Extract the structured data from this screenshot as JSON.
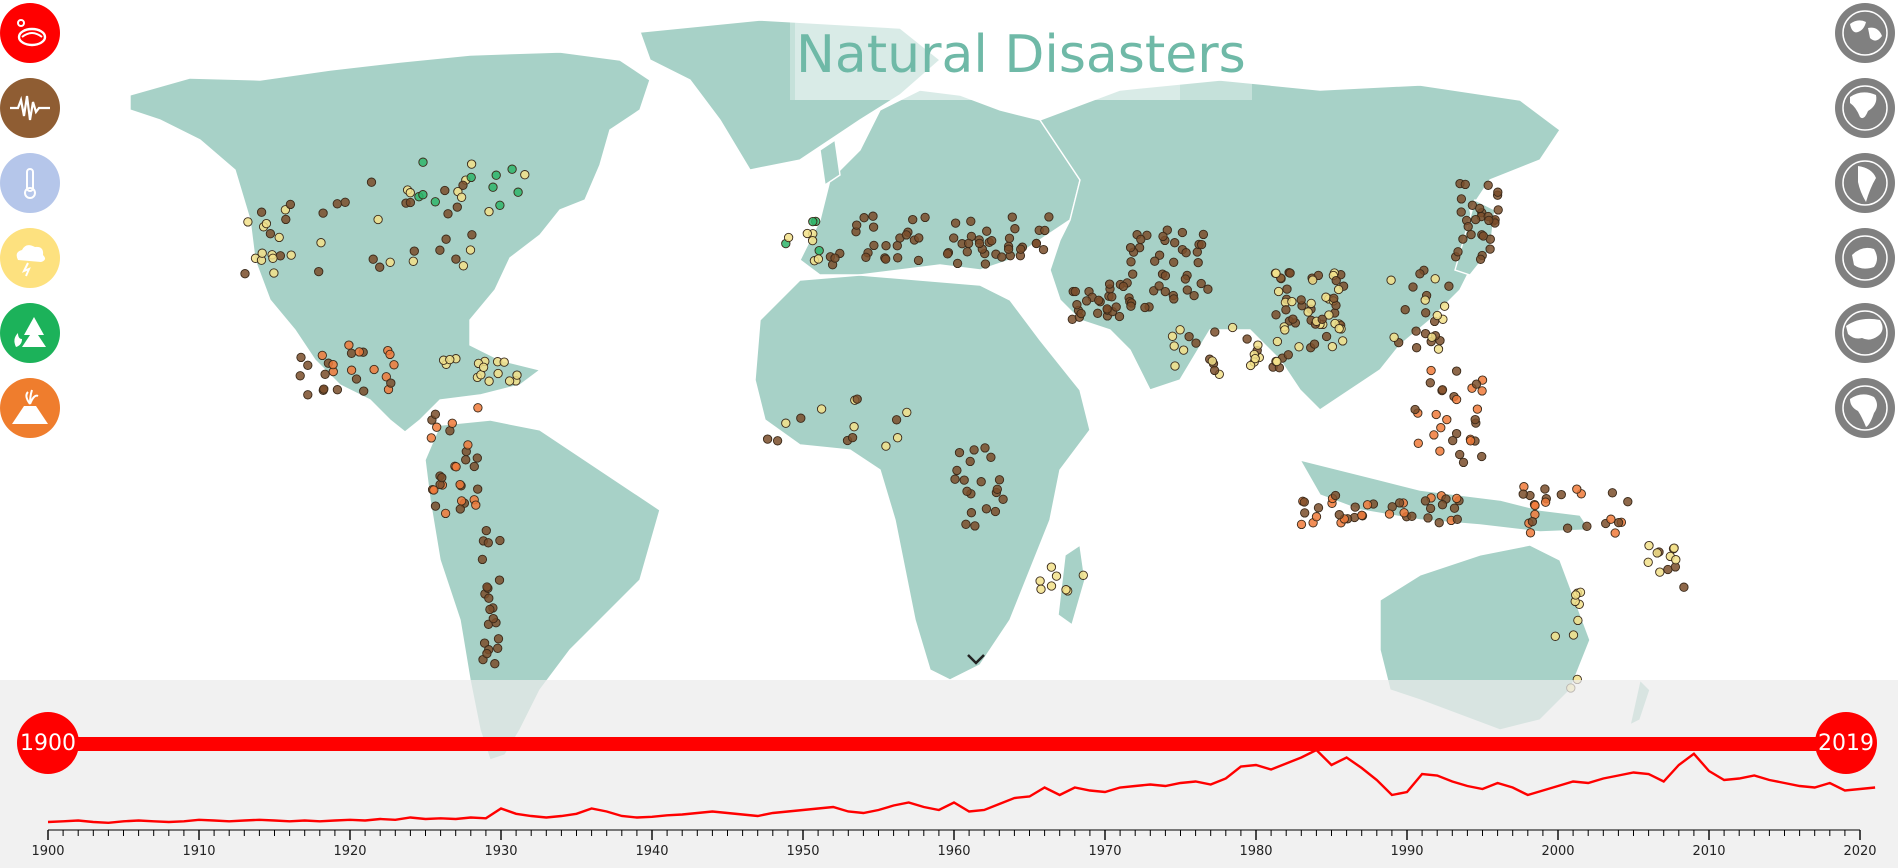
{
  "title": "Natural Disasters",
  "colors": {
    "land": "#a7d1c7",
    "accent": "#ff0000",
    "title": "#6fb9a7",
    "earthquake": "#7a4e2a",
    "storm": "#f2e08a",
    "wildfire": "#2fb56a",
    "volcano": "#f07a3a",
    "extreme_temp": "#c4cce8"
  },
  "left_toolbar": [
    {
      "icon": "all-disasters-icon",
      "color": "#ff0000"
    },
    {
      "icon": "earthquake-icon",
      "color": "#8f5d33"
    },
    {
      "icon": "thermometer-icon",
      "color": "#b5c6ea"
    },
    {
      "icon": "storm-cloud-icon",
      "color": "#fde17f"
    },
    {
      "icon": "wildfire-icon",
      "color": "#1cb25a"
    },
    {
      "icon": "volcano-icon",
      "color": "#ef7d2d"
    }
  ],
  "right_toolbar": [
    {
      "icon": "world-globe-icon"
    },
    {
      "icon": "north-america-globe-icon"
    },
    {
      "icon": "south-america-globe-icon"
    },
    {
      "icon": "australia-globe-icon"
    },
    {
      "icon": "asia-globe-icon"
    },
    {
      "icon": "africa-globe-icon"
    }
  ],
  "timeline": {
    "start_label": "1900",
    "end_label": "2019",
    "axis_ticks": [
      "1900",
      "1910",
      "1920",
      "1930",
      "1940",
      "1950",
      "1960",
      "1970",
      "1980",
      "1990",
      "2000",
      "2010",
      "2020"
    ],
    "range": [
      1900,
      2020
    ],
    "counts": [
      0.04,
      0.05,
      0.06,
      0.04,
      0.03,
      0.05,
      0.06,
      0.05,
      0.04,
      0.05,
      0.07,
      0.06,
      0.05,
      0.06,
      0.07,
      0.06,
      0.05,
      0.06,
      0.05,
      0.06,
      0.07,
      0.06,
      0.08,
      0.07,
      0.1,
      0.08,
      0.09,
      0.08,
      0.1,
      0.09,
      0.22,
      0.15,
      0.12,
      0.1,
      0.12,
      0.15,
      0.22,
      0.18,
      0.12,
      0.1,
      0.11,
      0.13,
      0.14,
      0.16,
      0.18,
      0.16,
      0.14,
      0.12,
      0.16,
      0.18,
      0.2,
      0.22,
      0.24,
      0.18,
      0.16,
      0.2,
      0.26,
      0.3,
      0.24,
      0.2,
      0.3,
      0.18,
      0.2,
      0.28,
      0.36,
      0.38,
      0.5,
      0.4,
      0.5,
      0.46,
      0.44,
      0.5,
      0.52,
      0.54,
      0.52,
      0.56,
      0.58,
      0.54,
      0.62,
      0.78,
      0.8,
      0.74,
      0.82,
      0.9,
      1.0,
      0.8,
      0.9,
      0.76,
      0.6,
      0.4,
      0.44,
      0.68,
      0.66,
      0.58,
      0.52,
      0.48,
      0.56,
      0.5,
      0.4,
      0.46,
      0.52,
      0.58,
      0.56,
      0.62,
      0.66,
      0.7,
      0.68,
      0.58,
      0.8,
      0.95,
      0.72,
      0.6,
      0.62,
      0.66,
      0.6,
      0.56,
      0.52,
      0.5,
      0.56,
      0.46,
      0.48,
      0.5
    ]
  }
}
